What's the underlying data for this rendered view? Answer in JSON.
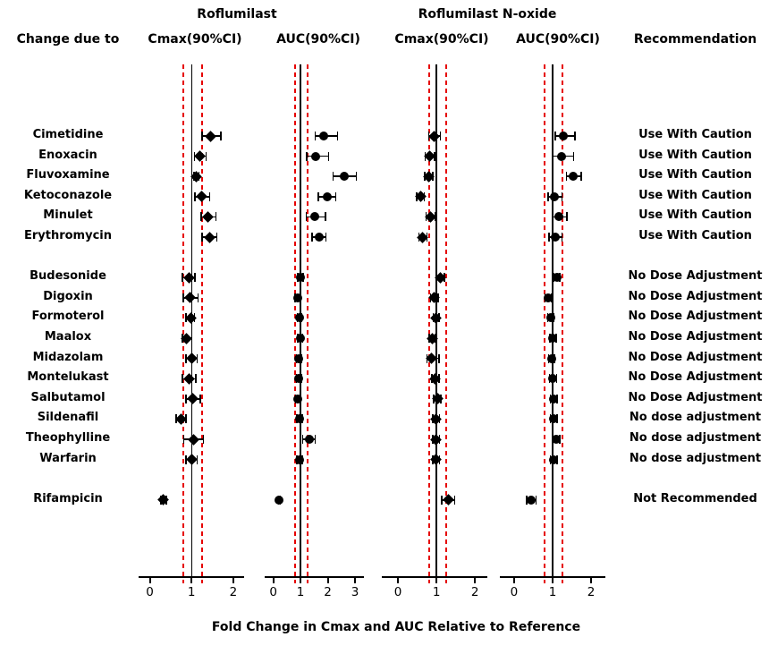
{
  "headers": {
    "group1": "Roflumilast",
    "group2": "Roflumilast N-oxide",
    "change_due_to": "Change due to",
    "recommendation": "Recommendation"
  },
  "colors": {
    "ink": "#000000",
    "reference_dashed": "#e60000",
    "background": "#ffffff"
  },
  "chart_data": {
    "type": "scatter",
    "subtype": "forest-plot",
    "xlabel": "Fold Change in Cmax and AUC Relative to Reference",
    "legend": "none",
    "grid": false,
    "reference_lines": {
      "solid": 1.0,
      "dashed": [
        0.8,
        1.25
      ]
    },
    "panels": [
      {
        "key": "roflumilast_cmax",
        "id": "roflumilast-cmax",
        "group": "Roflumilast",
        "label": "Cmax(90%CI)",
        "marker": "diamond",
        "ticks": [
          0,
          1,
          2
        ],
        "xmin": -0.27,
        "xmax": 2.26
      },
      {
        "key": "roflumilast_auc",
        "id": "roflumilast-auc",
        "group": "Roflumilast",
        "label": "AUC(90%CI)",
        "marker": "circle",
        "ticks": [
          0,
          1,
          2,
          3
        ],
        "xmin": -0.32,
        "xmax": 3.33
      },
      {
        "key": "n_oxide_cmax",
        "id": "n-oxide-cmax",
        "group": "Roflumilast N-oxide",
        "label": "Cmax(90%CI)",
        "marker": "diamond",
        "ticks": [
          0,
          1,
          2
        ],
        "xmin": -0.42,
        "xmax": 2.32
      },
      {
        "key": "n_oxide_auc",
        "id": "n-oxide-auc",
        "group": "Roflumilast N-oxide",
        "label": "AUC(90%CI)",
        "marker": "circle",
        "ticks": [
          0,
          1,
          2
        ],
        "xmin": -0.37,
        "xmax": 2.37
      }
    ],
    "rows": [
      {
        "drug": "Cimetidine",
        "group": "caution",
        "recommendation": "Use With Caution",
        "roflumilast_cmax": [
          1.46,
          1.25,
          1.7
        ],
        "roflumilast_auc": [
          1.84,
          1.53,
          2.36
        ],
        "n_oxide_cmax": [
          0.93,
          0.8,
          1.1
        ],
        "n_oxide_auc": [
          1.28,
          1.07,
          1.58
        ]
      },
      {
        "drug": "Enoxacin",
        "group": "caution",
        "recommendation": "Use With Caution",
        "roflumilast_cmax": [
          1.19,
          1.07,
          1.35
        ],
        "roflumilast_auc": [
          1.56,
          1.22,
          2.03
        ],
        "n_oxide_cmax": [
          0.81,
          0.71,
          0.95
        ],
        "n_oxide_auc": [
          1.22,
          1.01,
          1.55
        ]
      },
      {
        "drug": "Fluvoxamine",
        "group": "caution",
        "recommendation": "Use With Caution",
        "roflumilast_cmax": [
          1.12,
          1.06,
          1.18
        ],
        "roflumilast_auc": [
          2.59,
          2.19,
          3.05
        ],
        "n_oxide_cmax": [
          0.79,
          0.69,
          0.9
        ],
        "n_oxide_auc": [
          1.53,
          1.36,
          1.74
        ]
      },
      {
        "drug": "Ketoconazole",
        "group": "caution",
        "recommendation": "Use With Caution",
        "roflumilast_cmax": [
          1.24,
          1.08,
          1.43
        ],
        "roflumilast_auc": [
          1.98,
          1.65,
          2.3
        ],
        "n_oxide_cmax": [
          0.58,
          0.49,
          0.68
        ],
        "n_oxide_auc": [
          1.05,
          0.88,
          1.24
        ]
      },
      {
        "drug": "Minulet",
        "group": "caution",
        "recommendation": "Use With Caution",
        "roflumilast_cmax": [
          1.39,
          1.23,
          1.58
        ],
        "roflumilast_auc": [
          1.51,
          1.2,
          1.92
        ],
        "n_oxide_cmax": [
          0.85,
          0.73,
          0.97
        ],
        "n_oxide_auc": [
          1.16,
          0.99,
          1.37
        ]
      },
      {
        "drug": "Erythromycin",
        "group": "caution",
        "recommendation": "Use With Caution",
        "roflumilast_cmax": [
          1.43,
          1.25,
          1.6
        ],
        "roflumilast_auc": [
          1.68,
          1.42,
          1.93
        ],
        "n_oxide_cmax": [
          0.64,
          0.54,
          0.75
        ],
        "n_oxide_auc": [
          1.06,
          0.91,
          1.24
        ]
      },
      {
        "drug": "Budesonide",
        "group": "nda",
        "recommendation": "No Dose Adjustment",
        "roflumilast_cmax": [
          0.93,
          0.78,
          1.08
        ],
        "roflumilast_auc": [
          0.99,
          0.89,
          1.09
        ],
        "n_oxide_cmax": [
          1.1,
          1.0,
          1.2
        ],
        "n_oxide_auc": [
          1.11,
          1.03,
          1.19
        ]
      },
      {
        "drug": "Digoxin",
        "group": "nda",
        "recommendation": "No Dose Adjustment",
        "roflumilast_cmax": [
          0.96,
          0.8,
          1.16
        ],
        "roflumilast_auc": [
          0.89,
          0.8,
          0.99
        ],
        "n_oxide_cmax": [
          0.94,
          0.85,
          1.04
        ],
        "n_oxide_auc": [
          0.88,
          0.8,
          0.96
        ]
      },
      {
        "drug": "Formoterol",
        "group": "nda",
        "recommendation": "No Dose Adjustment",
        "roflumilast_cmax": [
          0.98,
          0.87,
          1.07
        ],
        "roflumilast_auc": [
          0.96,
          0.88,
          1.05
        ],
        "n_oxide_cmax": [
          0.99,
          0.91,
          1.07
        ],
        "n_oxide_auc": [
          0.95,
          0.87,
          1.03
        ]
      },
      {
        "drug": "Maalox",
        "group": "nda",
        "recommendation": "No Dose Adjustment",
        "roflumilast_cmax": [
          0.88,
          0.78,
          1.0
        ],
        "roflumilast_auc": [
          0.99,
          0.9,
          1.08
        ],
        "n_oxide_cmax": [
          0.89,
          0.81,
          0.97
        ],
        "n_oxide_auc": [
          1.01,
          0.93,
          1.09
        ]
      },
      {
        "drug": "Midazolam",
        "group": "nda",
        "recommendation": "No Dose Adjustment",
        "roflumilast_cmax": [
          1.0,
          0.86,
          1.13
        ],
        "roflumilast_auc": [
          0.94,
          0.85,
          1.03
        ],
        "n_oxide_cmax": [
          0.86,
          0.75,
          1.06
        ],
        "n_oxide_auc": [
          0.97,
          0.89,
          1.05
        ]
      },
      {
        "drug": "Montelukast",
        "group": "nda",
        "recommendation": "No Dose Adjustment",
        "roflumilast_cmax": [
          0.94,
          0.78,
          1.1
        ],
        "roflumilast_auc": [
          0.94,
          0.85,
          1.04
        ],
        "n_oxide_cmax": [
          0.97,
          0.88,
          1.07
        ],
        "n_oxide_auc": [
          1.01,
          0.92,
          1.1
        ]
      },
      {
        "drug": "Salbutamol",
        "group": "nda",
        "recommendation": "No Dose Adjustment",
        "roflumilast_cmax": [
          1.03,
          0.87,
          1.21
        ],
        "roflumilast_auc": [
          0.91,
          0.82,
          1.0
        ],
        "n_oxide_cmax": [
          1.02,
          0.93,
          1.11
        ],
        "n_oxide_auc": [
          1.03,
          0.94,
          1.12
        ]
      },
      {
        "drug": "Sildenafil",
        "group": "nda",
        "recommendation": "No dose adjustment",
        "roflumilast_cmax": [
          0.74,
          0.63,
          0.86
        ],
        "roflumilast_auc": [
          0.96,
          0.87,
          1.06
        ],
        "n_oxide_cmax": [
          0.99,
          0.9,
          1.08
        ],
        "n_oxide_auc": [
          1.03,
          0.94,
          1.12
        ]
      },
      {
        "drug": "Theophylline",
        "group": "nda",
        "recommendation": "No dose adjustment",
        "roflumilast_cmax": [
          1.05,
          0.81,
          1.28
        ],
        "roflumilast_auc": [
          1.32,
          1.07,
          1.53
        ],
        "n_oxide_cmax": [
          0.99,
          0.9,
          1.08
        ],
        "n_oxide_auc": [
          1.09,
          0.99,
          1.19
        ]
      },
      {
        "drug": "Warfarin",
        "group": "nda",
        "recommendation": "No dose adjustment",
        "roflumilast_cmax": [
          1.0,
          0.87,
          1.13
        ],
        "roflumilast_auc": [
          0.96,
          0.87,
          1.06
        ],
        "n_oxide_cmax": [
          0.99,
          0.9,
          1.08
        ],
        "n_oxide_auc": [
          1.03,
          0.94,
          1.12
        ]
      },
      {
        "drug": "Rifampicin",
        "group": "nr",
        "recommendation": "Not Recommended",
        "roflumilast_cmax": [
          0.32,
          0.26,
          0.39
        ],
        "roflumilast_auc": [
          0.22,
          0.18,
          0.26
        ],
        "n_oxide_cmax": [
          1.3,
          1.14,
          1.47
        ],
        "n_oxide_auc": [
          0.45,
          0.33,
          0.57
        ]
      }
    ]
  }
}
